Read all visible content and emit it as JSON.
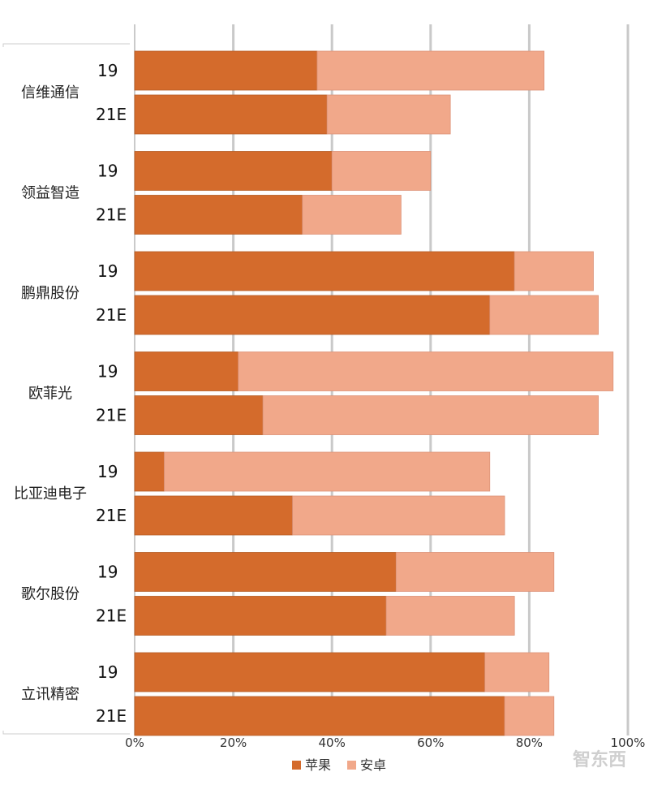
{
  "chart_data": {
    "type": "bar",
    "orientation": "horizontal",
    "stacked": true,
    "title": "",
    "xlabel": "",
    "ylabel": "",
    "xlim": [
      0,
      100
    ],
    "x_ticks": [
      "0%",
      "20%",
      "40%",
      "60%",
      "80%",
      "100%"
    ],
    "grid": true,
    "legend_position": "bottom",
    "series": [
      {
        "name": "苹果",
        "color": "#D46B2C"
      },
      {
        "name": "安卓",
        "color": "#F1A88A"
      }
    ],
    "groups": [
      {
        "company": "信维通信",
        "rows": [
          {
            "year": "19",
            "values": [
              37,
              46
            ]
          },
          {
            "year": "21E",
            "values": [
              39,
              25
            ]
          }
        ]
      },
      {
        "company": "领益智造",
        "rows": [
          {
            "year": "19",
            "values": [
              40,
              20
            ]
          },
          {
            "year": "21E",
            "values": [
              34,
              20
            ]
          }
        ]
      },
      {
        "company": "鹏鼎股份",
        "rows": [
          {
            "year": "19",
            "values": [
              77,
              16
            ]
          },
          {
            "year": "21E",
            "values": [
              72,
              22
            ]
          }
        ]
      },
      {
        "company": "欧菲光",
        "rows": [
          {
            "year": "19",
            "values": [
              21,
              76
            ]
          },
          {
            "year": "21E",
            "values": [
              26,
              68
            ]
          }
        ]
      },
      {
        "company": "比亚迪电子",
        "rows": [
          {
            "year": "19",
            "values": [
              6,
              66
            ]
          },
          {
            "year": "21E",
            "values": [
              32,
              43
            ]
          }
        ]
      },
      {
        "company": "歌尔股份",
        "rows": [
          {
            "year": "19",
            "values": [
              53,
              32
            ]
          },
          {
            "year": "21E",
            "values": [
              51,
              26
            ]
          }
        ]
      },
      {
        "company": "立讯精密",
        "rows": [
          {
            "year": "19",
            "values": [
              71,
              13
            ]
          },
          {
            "year": "21E",
            "values": [
              75,
              10
            ]
          }
        ]
      }
    ]
  },
  "watermark": {
    "text": "智东西"
  }
}
